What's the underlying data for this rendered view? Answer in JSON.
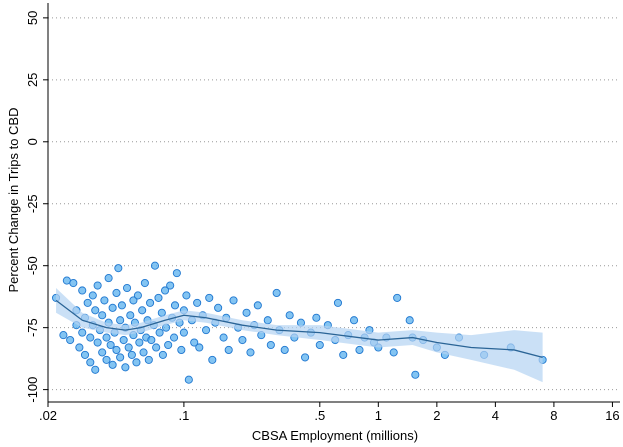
{
  "chart_data": {
    "type": "scatter",
    "xlabel": "CBSA Employment (millions)",
    "ylabel": "Percent Change in Trips to CBD",
    "xscale": "log",
    "xlim": [
      0.02,
      17.5
    ],
    "ylim": [
      -105,
      56
    ],
    "xticks": [
      {
        "value": 0.02,
        "label": ".02"
      },
      {
        "value": 0.1,
        "label": ".1"
      },
      {
        "value": 0.5,
        "label": ".5"
      },
      1,
      2,
      4,
      8,
      16
    ],
    "yticks": [
      50,
      25,
      0,
      -25,
      -50,
      -75,
      -100
    ],
    "grid": true,
    "marker_color": "#5ab0ee",
    "marker_edge": "#1f77d0",
    "x": [
      0.022,
      0.024,
      0.025,
      0.026,
      0.027,
      0.028,
      0.028,
      0.029,
      0.03,
      0.03,
      0.031,
      0.031,
      0.032,
      0.033,
      0.033,
      0.034,
      0.034,
      0.035,
      0.035,
      0.036,
      0.036,
      0.037,
      0.038,
      0.038,
      0.039,
      0.04,
      0.04,
      0.041,
      0.041,
      0.042,
      0.043,
      0.043,
      0.044,
      0.045,
      0.045,
      0.046,
      0.047,
      0.047,
      0.048,
      0.049,
      0.05,
      0.05,
      0.051,
      0.052,
      0.053,
      0.054,
      0.055,
      0.055,
      0.056,
      0.057,
      0.058,
      0.059,
      0.06,
      0.061,
      0.062,
      0.063,
      0.064,
      0.065,
      0.066,
      0.067,
      0.068,
      0.07,
      0.071,
      0.072,
      0.074,
      0.075,
      0.077,
      0.078,
      0.08,
      0.081,
      0.083,
      0.085,
      0.087,
      0.089,
      0.09,
      0.092,
      0.095,
      0.097,
      0.1,
      0.1,
      0.103,
      0.106,
      0.11,
      0.113,
      0.117,
      0.12,
      0.125,
      0.13,
      0.135,
      0.14,
      0.145,
      0.15,
      0.16,
      0.165,
      0.17,
      0.18,
      0.19,
      0.2,
      0.21,
      0.22,
      0.23,
      0.24,
      0.25,
      0.27,
      0.28,
      0.3,
      0.31,
      0.33,
      0.35,
      0.37,
      0.4,
      0.42,
      0.45,
      0.48,
      0.5,
      0.55,
      0.6,
      0.62,
      0.66,
      0.7,
      0.75,
      0.8,
      0.85,
      0.9,
      0.95,
      1.0,
      1.1,
      1.2,
      1.25,
      1.45,
      1.5,
      1.55,
      1.7,
      2.0,
      2.2,
      2.6,
      3.5,
      4.8,
      7.0
    ],
    "values": [
      -63,
      -78,
      -56,
      -80,
      -57,
      -74,
      -68,
      -83,
      -60,
      -77,
      -86,
      -71,
      -65,
      -79,
      -89,
      -62,
      -74,
      -92,
      -68,
      -81,
      -58,
      -76,
      -85,
      -70,
      -64,
      -79,
      -88,
      -55,
      -73,
      -82,
      -67,
      -90,
      -77,
      -61,
      -84,
      -51,
      -72,
      -87,
      -66,
      -80,
      -75,
      -91,
      -59,
      -83,
      -70,
      -86,
      -64,
      -78,
      -73,
      -89,
      -62,
      -81,
      -76,
      -68,
      -85,
      -57,
      -79,
      -72,
      -88,
      -65,
      -80,
      -74,
      -50,
      -83,
      -63,
      -77,
      -69,
      -86,
      -60,
      -75,
      -82,
      -58,
      -71,
      -79,
      -66,
      -53,
      -73,
      -84,
      -68,
      -77,
      -62,
      -96,
      -72,
      -81,
      -65,
      -83,
      -70,
      -76,
      -63,
      -88,
      -73,
      -67,
      -79,
      -71,
      -84,
      -64,
      -75,
      -80,
      -69,
      -85,
      -74,
      -66,
      -78,
      -72,
      -82,
      -61,
      -76,
      -84,
      -70,
      -79,
      -73,
      -87,
      -77,
      -71,
      -82,
      -74,
      -80,
      -65,
      -86,
      -78,
      -72,
      -84,
      -79,
      -76,
      -81,
      -83,
      -79,
      -85,
      -63,
      -72,
      -79,
      -94,
      -80,
      -83,
      -86,
      -79,
      -86,
      -83,
      -88
    ],
    "smooth": {
      "color": "#2a6496",
      "band_color": "#b3d3f2",
      "x": [
        0.022,
        0.03,
        0.04,
        0.05,
        0.06,
        0.08,
        0.1,
        0.13,
        0.2,
        0.3,
        0.5,
        1.0,
        1.5,
        2.0,
        3.0,
        5.0,
        7.0
      ],
      "values": [
        -64,
        -72,
        -75,
        -76,
        -75,
        -72,
        -70,
        -71,
        -74,
        -76,
        -77,
        -80,
        -79,
        -81,
        -83,
        -84,
        -87
      ],
      "lower": [
        -69,
        -75,
        -77,
        -78,
        -77,
        -74,
        -72,
        -73,
        -76,
        -78,
        -80,
        -83,
        -82,
        -85,
        -88,
        -92,
        -97
      ],
      "upper": [
        -59,
        -69,
        -73,
        -74,
        -73,
        -70,
        -68,
        -69,
        -72,
        -74,
        -74,
        -77,
        -76,
        -77,
        -78,
        -76,
        -77
      ]
    }
  }
}
